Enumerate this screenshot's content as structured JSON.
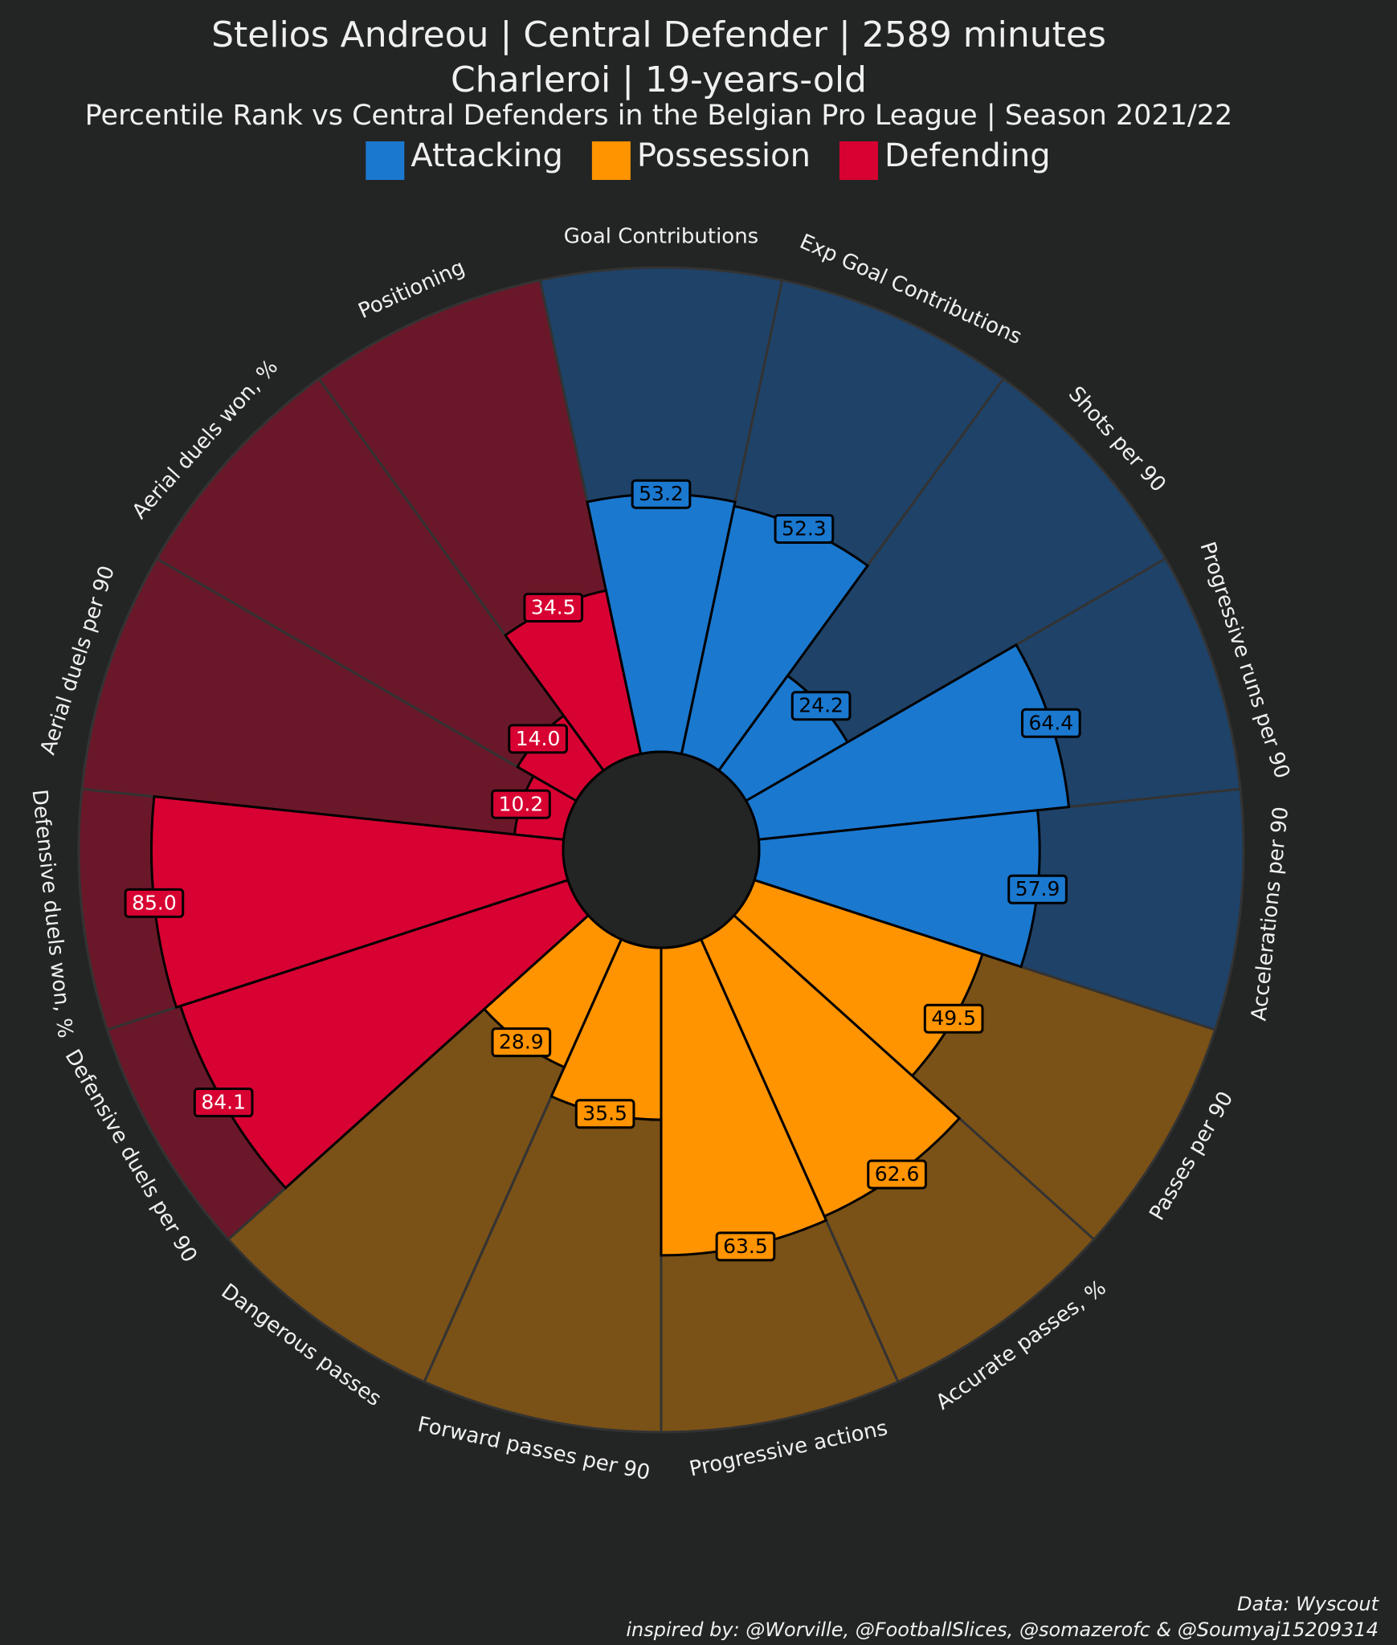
{
  "chart_data": {
    "type": "pizza",
    "title": [
      "Stelios Andreou | Central Defender | 2589 minutes",
      "Charleroi | 19-years-old"
    ],
    "subtitle": "Percentile Rank vs Central Defenders in the Belgian Pro League | Season 2021/22",
    "ylim": [
      0,
      100
    ],
    "series": [
      {
        "name": "Attacking",
        "color": "#1a78cf",
        "background_color": "#1f4268",
        "value_label_color": "#000000",
        "categories": [
          "Goal Contributions",
          "Exp Goal Contributions",
          "Shots per 90",
          "Progressive runs per 90",
          "Accelerations per 90"
        ],
        "values": [
          53.2,
          52.3,
          24.2,
          64.4,
          57.9
        ],
        "value_labels": [
          "53.2",
          "52.3",
          "24.2",
          "64.4",
          "57.9"
        ]
      },
      {
        "name": "Possession",
        "color": "#ff9300",
        "background_color": "#7a5116",
        "value_label_color": "#000000",
        "categories": [
          "Passes per 90",
          "Accurate passes, %",
          "Progressive actions",
          "Forward passes per 90",
          "Dangerous passes"
        ],
        "values": [
          49.5,
          62.6,
          63.5,
          35.5,
          28.9
        ],
        "value_labels": [
          "49.5",
          "62.6",
          "63.5",
          "35.5",
          "28.9"
        ]
      },
      {
        "name": "Defending",
        "color": "#d70232",
        "background_color": "#6a1829",
        "value_label_color": "#ffffff",
        "categories": [
          "Defensive duels per 90",
          "Defensive duels won, %",
          "Aerial duels per 90",
          "Aerial duels won, %",
          "Positioning"
        ],
        "values": [
          84.1,
          85.0,
          10.2,
          14.0,
          34.5
        ],
        "value_labels": [
          "84.1",
          "85.0",
          "10.2",
          "14.0",
          "34.5"
        ]
      }
    ],
    "annotations": [
      "Data: Wyscout",
      "inspired by: @Worville, @FootballSlices, @somazerofc & @Soumyaj15209314"
    ]
  }
}
